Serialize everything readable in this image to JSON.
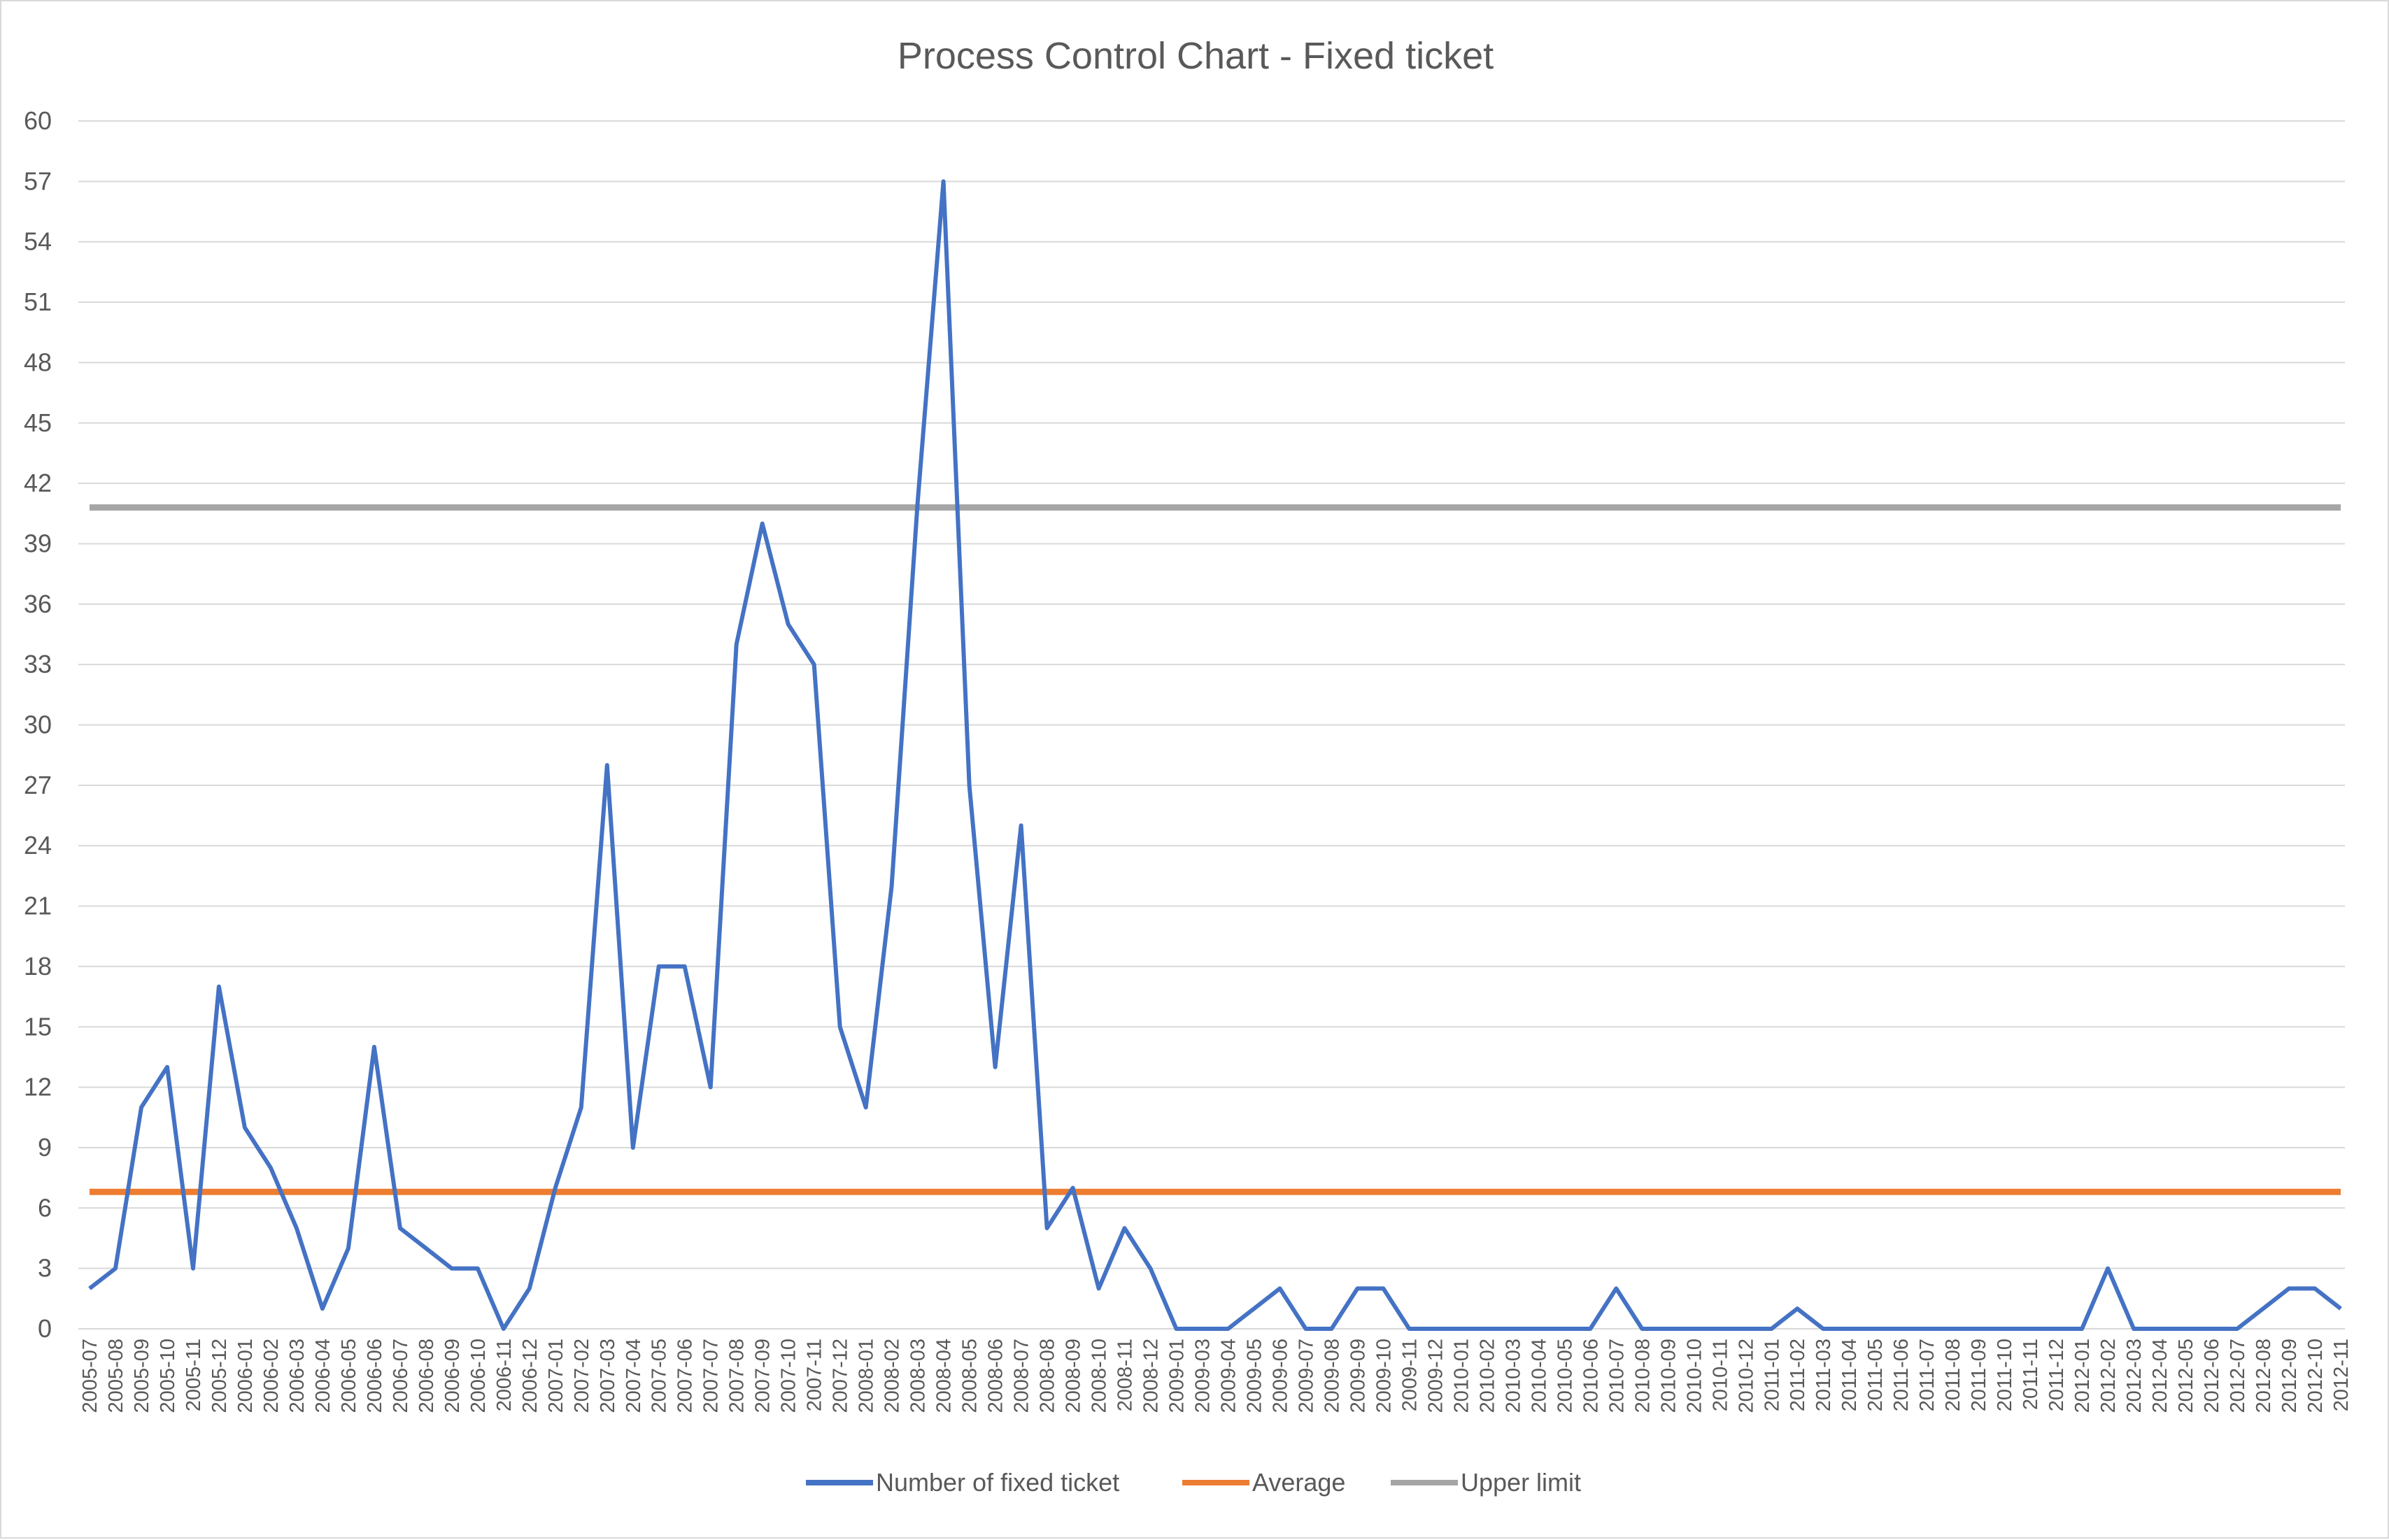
{
  "chart_data": {
    "type": "line",
    "title": "Process Control Chart - Fixed ticket",
    "xlabel": "",
    "ylabel": "",
    "ylim": [
      0,
      60
    ],
    "yticks": [
      0,
      3,
      6,
      9,
      12,
      15,
      18,
      21,
      24,
      27,
      30,
      33,
      36,
      39,
      42,
      45,
      48,
      51,
      54,
      57,
      60
    ],
    "grid": true,
    "legend": "bottom",
    "categories": [
      "2005-07",
      "2005-08",
      "2005-09",
      "2005-10",
      "2005-11",
      "2005-12",
      "2006-01",
      "2006-02",
      "2006-03",
      "2006-04",
      "2006-05",
      "2006-06",
      "2006-07",
      "2006-08",
      "2006-09",
      "2006-10",
      "2006-11",
      "2006-12",
      "2007-01",
      "2007-02",
      "2007-03",
      "2007-04",
      "2007-05",
      "2007-06",
      "2007-07",
      "2007-08",
      "2007-09",
      "2007-10",
      "2007-11",
      "2007-12",
      "2008-01",
      "2008-02",
      "2008-03",
      "2008-04",
      "2008-05",
      "2008-06",
      "2008-07",
      "2008-08",
      "2008-09",
      "2008-10",
      "2008-11",
      "2008-12",
      "2009-01",
      "2009-03",
      "2009-04",
      "2009-05",
      "2009-06",
      "2009-07",
      "2009-08",
      "2009-09",
      "2009-10",
      "2009-11",
      "2009-12",
      "2010-01",
      "2010-02",
      "2010-03",
      "2010-04",
      "2010-05",
      "2010-06",
      "2010-07",
      "2010-08",
      "2010-09",
      "2010-10",
      "2010-11",
      "2010-12",
      "2011-01",
      "2011-02",
      "2011-03",
      "2011-04",
      "2011-05",
      "2011-06",
      "2011-07",
      "2011-08",
      "2011-09",
      "2011-10",
      "2011-11",
      "2011-12",
      "2012-01",
      "2012-02",
      "2012-03",
      "2012-04",
      "2012-05",
      "2012-06",
      "2012-07",
      "2012-08",
      "2012-09",
      "2012-10",
      "2012-11"
    ],
    "series": [
      {
        "name": "Number of fixed ticket",
        "color": "#4472c4",
        "values": [
          2,
          3,
          11,
          13,
          3,
          17,
          10,
          8,
          5,
          1,
          4,
          14,
          5,
          4,
          3,
          3,
          0,
          2,
          7,
          11,
          28,
          9,
          18,
          18,
          12,
          34,
          40,
          35,
          33,
          15,
          11,
          22,
          41,
          57,
          27,
          13,
          25,
          5,
          7,
          2,
          5,
          3,
          0,
          0,
          0,
          1,
          2,
          0,
          0,
          2,
          2,
          0,
          0,
          0,
          0,
          0,
          0,
          0,
          0,
          2,
          0,
          0,
          0,
          0,
          0,
          0,
          1,
          0,
          0,
          0,
          0,
          0,
          0,
          0,
          0,
          0,
          0,
          0,
          3,
          0,
          0,
          0,
          0,
          0,
          1,
          2,
          2,
          1
        ]
      },
      {
        "name": "Average",
        "color": "#ed7d31",
        "constant": 6.8
      },
      {
        "name": "Upper limit",
        "color": "#a5a5a5",
        "constant": 40.8
      }
    ]
  }
}
